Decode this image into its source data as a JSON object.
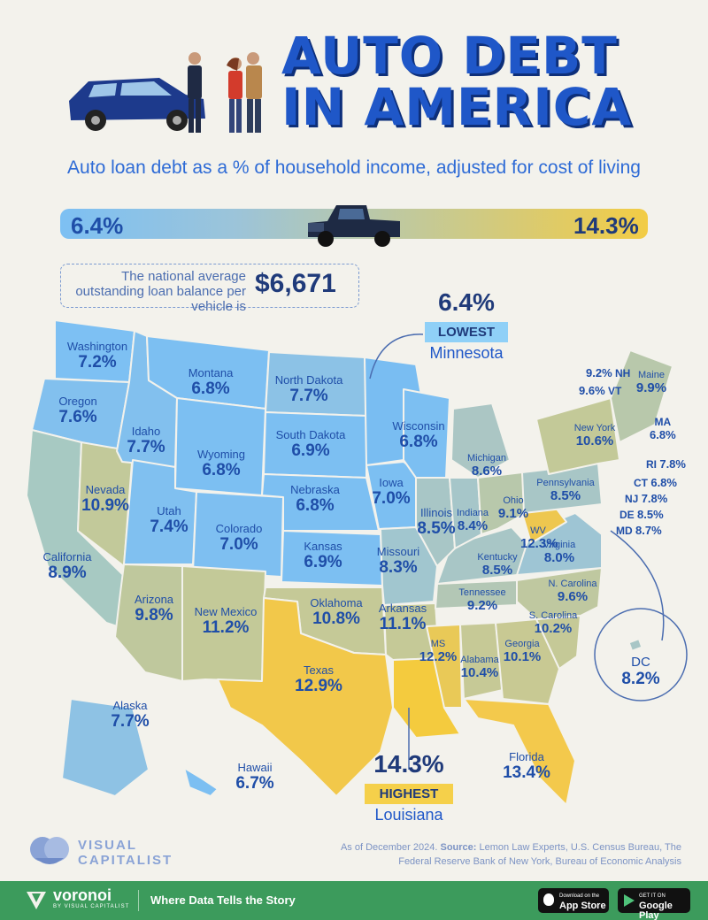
{
  "header": {
    "title": "AUTO DEBT IN AMERICA",
    "subtitle": "Auto loan debt as a % of household income, adjusted for cost of living"
  },
  "scale": {
    "low": "6.4%",
    "high": "14.3%",
    "low_color": "#7dc0f3",
    "high_color": "#f2cc45"
  },
  "national_average": {
    "text": "The national average outstanding loan balance per vehicle is",
    "value": "$6,671"
  },
  "lowest": {
    "value": "6.4%",
    "tag": "LOWEST",
    "state": "Minnesota",
    "tag_color": "#8fd0f7"
  },
  "highest": {
    "value": "14.3%",
    "tag": "HIGHEST",
    "state": "Louisiana",
    "tag_color": "#f5d04a"
  },
  "dc": {
    "name": "DC",
    "value": "8.2%"
  },
  "states": {
    "wa": {
      "name": "Washington",
      "value": "7.2%"
    },
    "or": {
      "name": "Oregon",
      "value": "7.6%"
    },
    "ca": {
      "name": "California",
      "value": "8.9%"
    },
    "nv": {
      "name": "Nevada",
      "value": "10.9%"
    },
    "id": {
      "name": "Idaho",
      "value": "7.7%"
    },
    "mt": {
      "name": "Montana",
      "value": "6.8%"
    },
    "wy": {
      "name": "Wyoming",
      "value": "6.8%"
    },
    "ut": {
      "name": "Utah",
      "value": "7.4%"
    },
    "az": {
      "name": "Arizona",
      "value": "9.8%"
    },
    "co": {
      "name": "Colorado",
      "value": "7.0%"
    },
    "nm": {
      "name": "New Mexico",
      "value": "11.2%"
    },
    "nd": {
      "name": "North Dakota",
      "value": "7.7%"
    },
    "sd": {
      "name": "South Dakota",
      "value": "6.9%"
    },
    "ne": {
      "name": "Nebraska",
      "value": "6.8%"
    },
    "ks": {
      "name": "Kansas",
      "value": "6.9%"
    },
    "ok": {
      "name": "Oklahoma",
      "value": "10.8%"
    },
    "tx": {
      "name": "Texas",
      "value": "12.9%"
    },
    "ia": {
      "name": "Iowa",
      "value": "7.0%"
    },
    "mo": {
      "name": "Missouri",
      "value": "8.3%"
    },
    "ar": {
      "name": "Arkansas",
      "value": "11.1%"
    },
    "ms": {
      "name": "MS",
      "value": "12.2%"
    },
    "al": {
      "name": "Alabama",
      "value": "10.4%"
    },
    "ga": {
      "name": "Georgia",
      "value": "10.1%"
    },
    "fl": {
      "name": "Florida",
      "value": "13.4%"
    },
    "sc": {
      "name": "S. Carolina",
      "value": "10.2%"
    },
    "nc": {
      "name": "N. Carolina",
      "value": "9.6%"
    },
    "tn": {
      "name": "Tennessee",
      "value": "9.2%"
    },
    "ky": {
      "name": "Kentucky",
      "value": "8.5%"
    },
    "va": {
      "name": "Virginia",
      "value": "8.0%"
    },
    "wv": {
      "name": "WV",
      "value": "12.3%"
    },
    "il": {
      "name": "Illinois",
      "value": "8.5%"
    },
    "in": {
      "name": "Indiana",
      "value": "8.4%"
    },
    "oh": {
      "name": "Ohio",
      "value": "9.1%"
    },
    "wi": {
      "name": "Wisconsin",
      "value": "6.8%"
    },
    "mi": {
      "name": "Michigan",
      "value": "8.6%"
    },
    "pa": {
      "name": "Pennsylvania",
      "value": "8.5%"
    },
    "ny": {
      "name": "New York",
      "value": "10.6%"
    },
    "me": {
      "name": "Maine",
      "value": "9.9%"
    },
    "ak": {
      "name": "Alaska",
      "value": "7.7%"
    },
    "hi": {
      "name": "Hawaii",
      "value": "6.7%"
    }
  },
  "northeast": {
    "nh": {
      "name": "NH",
      "value": "9.2%"
    },
    "vt": {
      "name": "VT",
      "value": "9.6%"
    },
    "ma": {
      "name": "MA",
      "value": "6.8%"
    },
    "ri": {
      "name": "RI",
      "value": "7.8%"
    },
    "ct": {
      "name": "CT",
      "value": "6.8%"
    },
    "nj": {
      "name": "NJ",
      "value": "7.8%"
    },
    "de": {
      "name": "DE",
      "value": "8.5%"
    },
    "md": {
      "name": "MD",
      "value": "8.7%"
    }
  },
  "source": {
    "prefix": "As of December 2024.",
    "label": "Source:",
    "text": "Lemon Law Experts, U.S. Census Bureau, The Federal Reserve Bank of New York, Bureau of Economic Analysis"
  },
  "brand": {
    "logo_top": "VISUAL",
    "logo_bottom": "CAPITALIST"
  },
  "footer": {
    "brand": "voronoi",
    "brand_sub": "BY VISUAL CAPITALIST",
    "tagline": "Where Data Tells the Story",
    "appstore_small": "Download on the",
    "appstore": "App Store",
    "googleplay_small": "GET IT ON",
    "googleplay": "Google Play"
  }
}
